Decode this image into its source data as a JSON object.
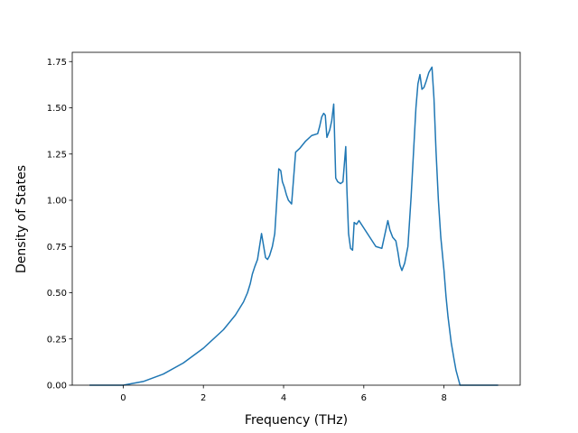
{
  "chart_data": {
    "type": "line",
    "title": "",
    "xlabel": "Frequency (THz)",
    "ylabel": "Density of States",
    "xlim": [
      -1.27,
      9.9
    ],
    "ylim": [
      0,
      1.8
    ],
    "grid": false,
    "x_ticks": [
      {
        "value": 0,
        "label": "0"
      },
      {
        "value": 2,
        "label": "2"
      },
      {
        "value": 4,
        "label": "4"
      },
      {
        "value": 6,
        "label": "6"
      },
      {
        "value": 8,
        "label": "8"
      }
    ],
    "y_ticks": [
      {
        "value": 0.0,
        "label": "0.00"
      },
      {
        "value": 0.25,
        "label": "0.25"
      },
      {
        "value": 0.5,
        "label": "0.50"
      },
      {
        "value": 0.75,
        "label": "0.75"
      },
      {
        "value": 1.0,
        "label": "1.00"
      },
      {
        "value": 1.25,
        "label": "1.25"
      },
      {
        "value": 1.5,
        "label": "1.50"
      },
      {
        "value": 1.75,
        "label": "1.75"
      }
    ],
    "series": [
      {
        "color": "#1f77b4",
        "x": [
          -0.84,
          0.0,
          0.5,
          1.0,
          1.5,
          2.0,
          2.5,
          2.8,
          3.0,
          3.1,
          3.17,
          3.22,
          3.28,
          3.35,
          3.45,
          3.55,
          3.6,
          3.65,
          3.72,
          3.78,
          3.88,
          3.93,
          3.97,
          4.02,
          4.07,
          4.12,
          4.2,
          4.3,
          4.4,
          4.55,
          4.7,
          4.85,
          4.9,
          4.95,
          5.0,
          5.04,
          5.08,
          5.15,
          5.2,
          5.25,
          5.3,
          5.35,
          5.42,
          5.48,
          5.55,
          5.58,
          5.62,
          5.67,
          5.72,
          5.76,
          5.82,
          5.88,
          6.0,
          6.15,
          6.3,
          6.45,
          6.55,
          6.6,
          6.65,
          6.72,
          6.8,
          6.85,
          6.9,
          6.95,
          7.02,
          7.1,
          7.18,
          7.25,
          7.3,
          7.35,
          7.4,
          7.45,
          7.5,
          7.55,
          7.62,
          7.7,
          7.75,
          7.8,
          7.86,
          7.92,
          8.0,
          8.05,
          8.1,
          8.18,
          8.25,
          8.3,
          8.4,
          8.5,
          8.53,
          8.6,
          9.35
        ],
        "y": [
          0.0,
          0.0,
          0.02,
          0.06,
          0.12,
          0.2,
          0.3,
          0.38,
          0.45,
          0.5,
          0.55,
          0.6,
          0.64,
          0.68,
          0.82,
          0.69,
          0.68,
          0.7,
          0.75,
          0.82,
          1.17,
          1.16,
          1.1,
          1.07,
          1.03,
          1.0,
          0.98,
          1.26,
          1.28,
          1.32,
          1.35,
          1.36,
          1.4,
          1.45,
          1.47,
          1.46,
          1.34,
          1.38,
          1.43,
          1.52,
          1.12,
          1.1,
          1.09,
          1.1,
          1.29,
          1.05,
          0.82,
          0.74,
          0.73,
          0.88,
          0.87,
          0.89,
          0.85,
          0.8,
          0.75,
          0.74,
          0.84,
          0.89,
          0.84,
          0.8,
          0.78,
          0.72,
          0.65,
          0.62,
          0.66,
          0.75,
          1.02,
          1.3,
          1.5,
          1.63,
          1.68,
          1.6,
          1.61,
          1.64,
          1.69,
          1.72,
          1.55,
          1.27,
          1.0,
          0.8,
          0.62,
          0.48,
          0.37,
          0.23,
          0.14,
          0.08,
          0.0,
          0.0,
          0.0,
          0.0,
          0.0
        ]
      }
    ]
  }
}
